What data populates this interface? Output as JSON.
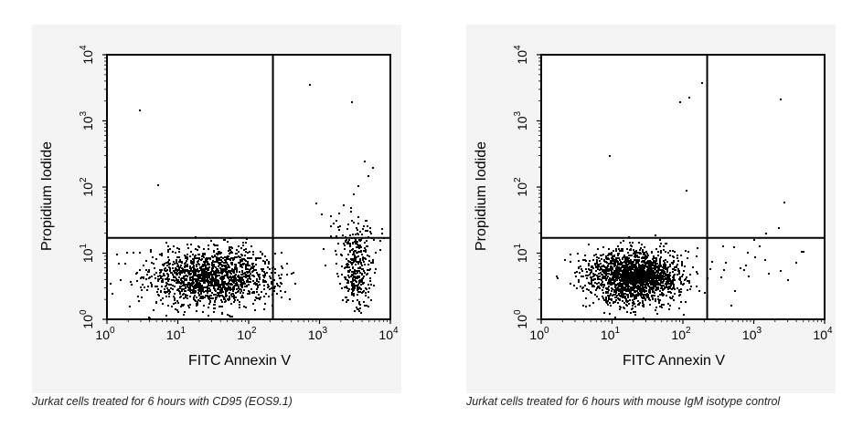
{
  "chart_data": [
    {
      "type": "scatter",
      "subtype": "flow-cytometry-dot-plot",
      "xlabel": "FITC Annexin V",
      "ylabel": "Propidium Iodide",
      "x_scale": "log",
      "y_scale": "log",
      "xlim": [
        1,
        10000
      ],
      "ylim": [
        1,
        10000
      ],
      "x_tick_labels": [
        {
          "base": "10",
          "exp": "0"
        },
        {
          "base": "10",
          "exp": "1"
        },
        {
          "base": "10",
          "exp": "2"
        },
        {
          "base": "10",
          "exp": "3"
        },
        {
          "base": "10",
          "exp": "4"
        }
      ],
      "y_tick_labels": [
        {
          "base": "10",
          "exp": "0"
        },
        {
          "base": "10",
          "exp": "1"
        },
        {
          "base": "10",
          "exp": "2"
        },
        {
          "base": "10",
          "exp": "3"
        },
        {
          "base": "10",
          "exp": "4"
        }
      ],
      "gate_x": 220,
      "gate_y": 17,
      "grid": false,
      "caption": "Jurkat cells treated for 6 hours with CD95 (EOS9.1)",
      "populations": [
        {
          "x_center": 30,
          "y_center": 4.5,
          "x_spread_decades": 0.45,
          "y_spread_decades": 0.22,
          "count": 1500
        },
        {
          "x_center": 3200,
          "y_center": 6,
          "x_spread_decades": 0.11,
          "y_spread_decades": 0.3,
          "count": 320
        },
        {
          "x_center": 2500,
          "y_center": 22,
          "x_spread_decades": 0.25,
          "y_spread_decades": 0.25,
          "count": 45
        }
      ],
      "points": [
        {
          "x": 2.8,
          "y": 1500
        },
        {
          "x": 5.2,
          "y": 110
        },
        {
          "x": 720,
          "y": 3600
        },
        {
          "x": 2800,
          "y": 2000
        },
        {
          "x": 4200,
          "y": 250
        },
        {
          "x": 5500,
          "y": 200
        },
        {
          "x": 3000,
          "y": 80
        },
        {
          "x": 4800,
          "y": 150
        },
        {
          "x": 1.5,
          "y": 4
        }
      ]
    },
    {
      "type": "scatter",
      "subtype": "flow-cytometry-dot-plot",
      "xlabel": "FITC Annexin V",
      "ylabel": "Propidium Iodide",
      "x_scale": "log",
      "y_scale": "log",
      "xlim": [
        1,
        10000
      ],
      "ylim": [
        1,
        10000
      ],
      "x_tick_labels": [
        {
          "base": "10",
          "exp": "0"
        },
        {
          "base": "10",
          "exp": "1"
        },
        {
          "base": "10",
          "exp": "2"
        },
        {
          "base": "10",
          "exp": "3"
        },
        {
          "base": "10",
          "exp": "4"
        }
      ],
      "y_tick_labels": [
        {
          "base": "10",
          "exp": "0"
        },
        {
          "base": "10",
          "exp": "1"
        },
        {
          "base": "10",
          "exp": "2"
        },
        {
          "base": "10",
          "exp": "3"
        },
        {
          "base": "10",
          "exp": "4"
        }
      ],
      "gate_x": 220,
      "gate_y": 17,
      "grid": false,
      "caption": "Jurkat cells treated for 6 hours with mouse IgM isotype control",
      "populations": [
        {
          "x_center": 20,
          "y_center": 4.5,
          "x_spread_decades": 0.32,
          "y_spread_decades": 0.2,
          "count": 1900
        },
        {
          "x_center": 900,
          "y_center": 8,
          "x_spread_decades": 0.4,
          "y_spread_decades": 0.3,
          "count": 25
        }
      ],
      "points": [
        {
          "x": 9,
          "y": 300
        },
        {
          "x": 90,
          "y": 2000
        },
        {
          "x": 120,
          "y": 2300
        },
        {
          "x": 180,
          "y": 3800
        },
        {
          "x": 2300,
          "y": 2200
        },
        {
          "x": 110,
          "y": 90
        },
        {
          "x": 2600,
          "y": 60
        },
        {
          "x": 3000,
          "y": 4
        },
        {
          "x": 1000,
          "y": 9
        }
      ]
    }
  ]
}
